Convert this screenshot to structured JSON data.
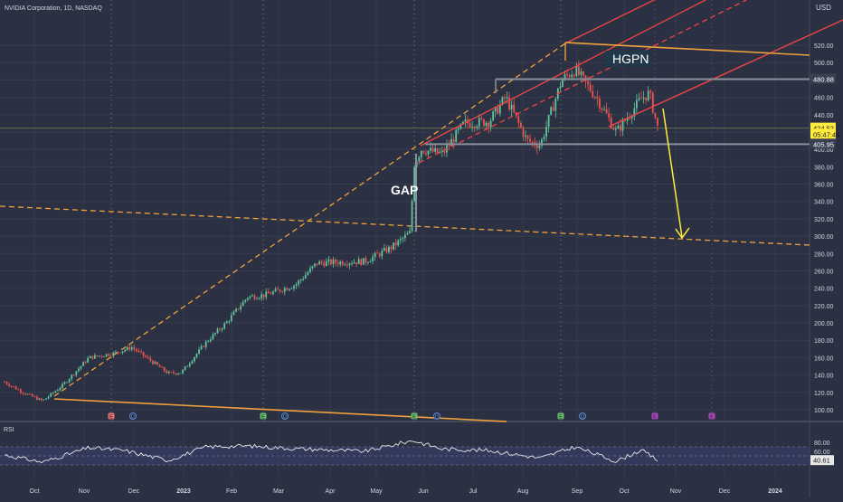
{
  "header": {
    "title": "NVIDIA Corporation, 1D, NASDAQ"
  },
  "price_axis": {
    "currency": "USD",
    "ticks": [
      "520.00",
      "500.00",
      "480.00",
      "460.00",
      "440.00",
      "420.00",
      "400.00",
      "380.00",
      "360.00",
      "340.00",
      "320.00",
      "300.00",
      "280.00",
      "260.00",
      "240.00",
      "220.00",
      "200.00",
      "180.00",
      "160.00",
      "140.00",
      "120.00",
      "100.00"
    ],
    "labels": [
      {
        "name": "level-480-label",
        "text": "480.88",
        "value": 480.88,
        "bg": "#3a4052",
        "fg": "#ffffff"
      },
      {
        "name": "current-price-label",
        "text": "424.52",
        "value": 424.52,
        "bg": "#ffeb3b",
        "fg": "#131722"
      },
      {
        "name": "countdown-label",
        "text": "05:47:45",
        "value": 417.5,
        "bg": "#ffeb3b",
        "fg": "#131722"
      },
      {
        "name": "level-405-label",
        "text": "405.95",
        "value": 405.95,
        "bg": "#3a4052",
        "fg": "#ffffff"
      }
    ]
  },
  "time_axis": {
    "ticks": [
      "Oct",
      "Nov",
      "Dec",
      "2023",
      "Feb",
      "Mar",
      "Apr",
      "May",
      "Jun",
      "Jul",
      "Aug",
      "Sep",
      "Oct",
      "Nov",
      "Dec",
      "2024"
    ],
    "bold": [
      "2023",
      "2024"
    ]
  },
  "annotations": [
    {
      "name": "gap-label",
      "text": "GAP"
    },
    {
      "name": "hgpn-label",
      "text": "HGPN"
    }
  ],
  "events": [
    {
      "name": "earnings-marker",
      "text": "E",
      "color": "#e57373"
    },
    {
      "name": "dividend-marker",
      "text": "D",
      "color": "#5c8bd6"
    },
    {
      "name": "earnings-marker",
      "text": "E",
      "color": "#66bb6a"
    },
    {
      "name": "dividend-marker",
      "text": "D",
      "color": "#5c8bd6"
    },
    {
      "name": "earnings-marker",
      "text": "E",
      "color": "#66bb6a"
    },
    {
      "name": "dividend-marker",
      "text": "D",
      "color": "#5c8bd6"
    },
    {
      "name": "earnings-marker",
      "text": "E",
      "color": "#66bb6a"
    },
    {
      "name": "dividend-marker",
      "text": "D",
      "color": "#5c8bd6"
    },
    {
      "name": "earnings-marker",
      "text": "E",
      "color": "#ab47bc"
    },
    {
      "name": "earnings-marker",
      "text": "E",
      "color": "#ab47bc"
    }
  ],
  "rsi": {
    "label": "RSI",
    "ticks": [
      "80.00",
      "60.00"
    ],
    "value_text": "40.61",
    "value": 40.61,
    "band": [
      30,
      70
    ]
  },
  "colors": {
    "background": "#2b3143",
    "up": "#5fc39d",
    "down": "#ef5350",
    "orange": "#f0a03c",
    "red": "#ef4444",
    "gray": "#8a8f9c",
    "yellow": "#ffeb3b",
    "rsi_line": "#e8e8e8"
  },
  "chart_data": {
    "type": "candlestick",
    "title": "NVIDIA Corporation, 1D, NASDAQ",
    "ylabel": "USD",
    "ylim": [
      90,
      530
    ],
    "price_path": [
      [
        "2022-09-20",
        132
      ],
      [
        "2022-09-30",
        121
      ],
      [
        "2022-10-13",
        110
      ],
      [
        "2022-10-25",
        128
      ],
      [
        "2022-11-10",
        160
      ],
      [
        "2022-11-25",
        165
      ],
      [
        "2022-12-06",
        172
      ],
      [
        "2022-12-28",
        142
      ],
      [
        "2023-01-05",
        143
      ],
      [
        "2023-01-20",
        178
      ],
      [
        "2023-02-01",
        200
      ],
      [
        "2023-02-14",
        230
      ],
      [
        "2023-02-24",
        232
      ],
      [
        "2023-03-01",
        235
      ],
      [
        "2023-03-15",
        244
      ],
      [
        "2023-03-28",
        269
      ],
      [
        "2023-04-10",
        270
      ],
      [
        "2023-04-26",
        271
      ],
      [
        "2023-05-12",
        287
      ],
      [
        "2023-05-24",
        305
      ],
      [
        "2023-05-25",
        380
      ],
      [
        "2023-05-30",
        400
      ],
      [
        "2023-06-12",
        395
      ],
      [
        "2023-06-25",
        430
      ],
      [
        "2023-07-10",
        432
      ],
      [
        "2023-07-20",
        460
      ],
      [
        "2023-08-02",
        410
      ],
      [
        "2023-08-10",
        405
      ],
      [
        "2023-08-23",
        480
      ],
      [
        "2023-08-31",
        492
      ],
      [
        "2023-09-13",
        460
      ],
      [
        "2023-09-25",
        420
      ],
      [
        "2023-10-10",
        458
      ],
      [
        "2023-10-15",
        465
      ],
      [
        "2023-10-20",
        424.52
      ]
    ],
    "levels": [
      480.88,
      405.95
    ],
    "current_price": 424.52,
    "rsi_current": 40.61,
    "rsi_path": [
      [
        "2022-09-20",
        52
      ],
      [
        "2022-10-13",
        36
      ],
      [
        "2022-11-10",
        68
      ],
      [
        "2022-12-01",
        62
      ],
      [
        "2022-12-28",
        40
      ],
      [
        "2023-01-20",
        70
      ],
      [
        "2023-02-14",
        72
      ],
      [
        "2023-03-15",
        66
      ],
      [
        "2023-04-26",
        60
      ],
      [
        "2023-05-25",
        84
      ],
      [
        "2023-06-12",
        65
      ],
      [
        "2023-07-10",
        62
      ],
      [
        "2023-08-10",
        45
      ],
      [
        "2023-08-31",
        70
      ],
      [
        "2023-09-25",
        38
      ],
      [
        "2023-10-10",
        63
      ],
      [
        "2023-10-20",
        40.61
      ]
    ]
  }
}
